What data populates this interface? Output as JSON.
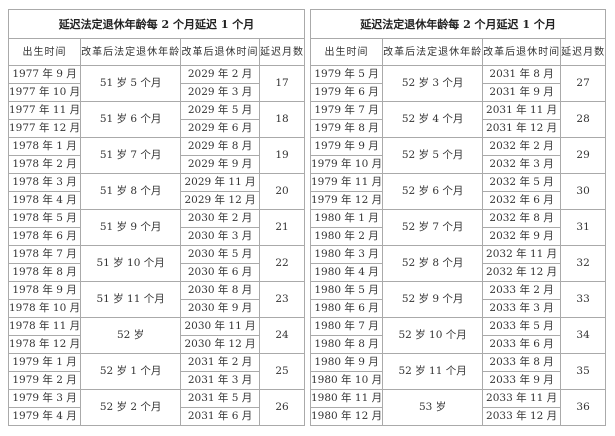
{
  "tables": [
    {
      "title": "延迟法定退休年龄每 2 个月延迟 1 个月",
      "headers": [
        "出生时间",
        "改革后法定退休年龄",
        "改革后退休时间",
        "延迟月数"
      ],
      "groups": [
        {
          "births": [
            "1977 年 9 月",
            "1977 年 10 月"
          ],
          "age": "51 岁 5 个月",
          "retire": [
            "2029 年 2 月",
            "2029 年 3 月"
          ],
          "delay": "17"
        },
        {
          "births": [
            "1977 年 11 月",
            "1977 年 12 月"
          ],
          "age": "51 岁 6 个月",
          "retire": [
            "2029 年 5 月",
            "2029 年 6 月"
          ],
          "delay": "18"
        },
        {
          "births": [
            "1978 年 1 月",
            "1978 年 2 月"
          ],
          "age": "51 岁 7 个月",
          "retire": [
            "2029 年 8 月",
            "2029 年 9 月"
          ],
          "delay": "19"
        },
        {
          "births": [
            "1978 年 3 月",
            "1978 年 4 月"
          ],
          "age": "51 岁 8 个月",
          "retire": [
            "2029 年 11 月",
            "2029 年 12 月"
          ],
          "delay": "20"
        },
        {
          "births": [
            "1978 年 5 月",
            "1978 年 6 月"
          ],
          "age": "51 岁 9 个月",
          "retire": [
            "2030 年 2 月",
            "2030 年 3 月"
          ],
          "delay": "21"
        },
        {
          "births": [
            "1978 年 7 月",
            "1978 年 8 月"
          ],
          "age": "51 岁 10 个月",
          "retire": [
            "2030 年 5 月",
            "2030 年 6 月"
          ],
          "delay": "22"
        },
        {
          "births": [
            "1978 年 9 月",
            "1978 年 10 月"
          ],
          "age": "51 岁 11 个月",
          "retire": [
            "2030 年 8 月",
            "2030 年 9 月"
          ],
          "delay": "23"
        },
        {
          "births": [
            "1978 年 11 月",
            "1978 年 12 月"
          ],
          "age": "52 岁",
          "retire": [
            "2030 年 11 月",
            "2030 年 12 月"
          ],
          "delay": "24"
        },
        {
          "births": [
            "1979 年 1 月",
            "1979 年 2 月"
          ],
          "age": "52 岁 1 个月",
          "retire": [
            "2031 年 2 月",
            "2031 年 3 月"
          ],
          "delay": "25"
        },
        {
          "births": [
            "1979 年 3 月",
            "1979 年 4 月"
          ],
          "age": "52 岁 2 个月",
          "retire": [
            "2031 年 5 月",
            "2031 年 6 月"
          ],
          "delay": "26"
        }
      ]
    },
    {
      "title": "延迟法定退休年龄每 2 个月延迟 1 个月",
      "headers": [
        "出生时间",
        "改革后法定退休年龄",
        "改革后退休时间",
        "延迟月数"
      ],
      "groups": [
        {
          "births": [
            "1979 年 5 月",
            "1979 年 6 月"
          ],
          "age": "52 岁 3 个月",
          "retire": [
            "2031 年 8 月",
            "2031 年 9 月"
          ],
          "delay": "27"
        },
        {
          "births": [
            "1979 年 7 月",
            "1979 年 8 月"
          ],
          "age": "52 岁 4 个月",
          "retire": [
            "2031 年 11 月",
            "2031 年 12 月"
          ],
          "delay": "28"
        },
        {
          "births": [
            "1979 年 9 月",
            "1979 年 10 月"
          ],
          "age": "52 岁 5 个月",
          "retire": [
            "2032 年 2 月",
            "2032 年 3 月"
          ],
          "delay": "29"
        },
        {
          "births": [
            "1979 年 11 月",
            "1979 年 12 月"
          ],
          "age": "52 岁 6 个月",
          "retire": [
            "2032 年 5 月",
            "2032 年 6 月"
          ],
          "delay": "30"
        },
        {
          "births": [
            "1980 年 1 月",
            "1980 年 2 月"
          ],
          "age": "52 岁 7 个月",
          "retire": [
            "2032 年 8 月",
            "2032 年 9 月"
          ],
          "delay": "31"
        },
        {
          "births": [
            "1980 年 3 月",
            "1980 年 4 月"
          ],
          "age": "52 岁 8 个月",
          "retire": [
            "2032 年 11 月",
            "2032 年 12 月"
          ],
          "delay": "32"
        },
        {
          "births": [
            "1980 年 5 月",
            "1980 年 6 月"
          ],
          "age": "52 岁 9 个月",
          "retire": [
            "2033 年 2 月",
            "2033 年 3 月"
          ],
          "delay": "33"
        },
        {
          "births": [
            "1980 年 7 月",
            "1980 年 8 月"
          ],
          "age": "52 岁 10 个月",
          "retire": [
            "2033 年 5 月",
            "2033 年 6 月"
          ],
          "delay": "34"
        },
        {
          "births": [
            "1980 年 9 月",
            "1980 年 10 月"
          ],
          "age": "52 岁 11 个月",
          "retire": [
            "2033 年 8 月",
            "2033 年 9 月"
          ],
          "delay": "35"
        },
        {
          "births": [
            "1980 年 11 月",
            "1980 年 12 月"
          ],
          "age": "53 岁",
          "retire": [
            "2033 年 11 月",
            "2033 年 12 月"
          ],
          "delay": "36"
        }
      ]
    }
  ]
}
